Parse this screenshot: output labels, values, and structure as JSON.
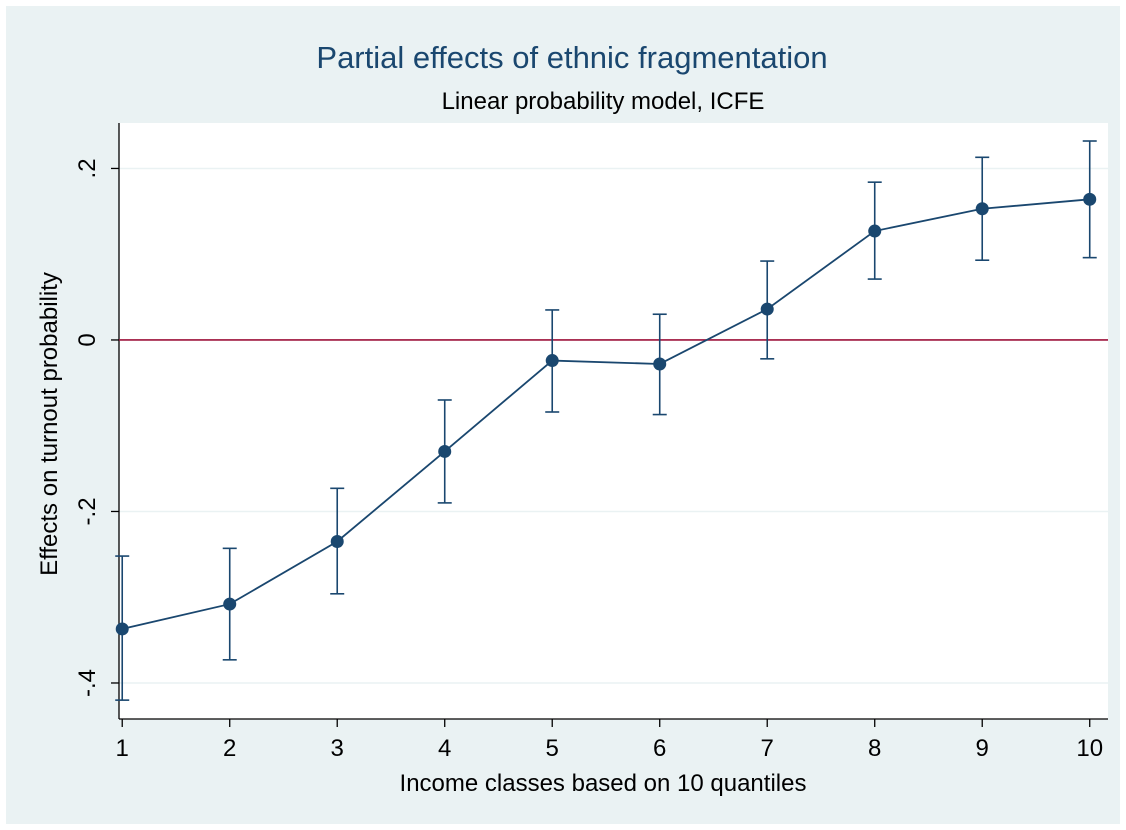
{
  "chart_data": {
    "type": "line",
    "title": "Partial effects of ethnic fragmentation",
    "subtitle": "Linear probability model, ICFE",
    "xlabel": "Income classes based on 10 quantiles",
    "ylabel": "Effects on turnout probability",
    "x": [
      1,
      2,
      3,
      4,
      5,
      6,
      7,
      8,
      9,
      10
    ],
    "x_ticks": [
      "1",
      "2",
      "3",
      "4",
      "5",
      "6",
      "7",
      "8",
      "9",
      "10"
    ],
    "y_ticks": [
      {
        "value": -0.4,
        "label": "-.4"
      },
      {
        "value": -0.2,
        "label": "-.2"
      },
      {
        "value": 0,
        "label": "0"
      },
      {
        "value": 0.2,
        "label": ".2"
      }
    ],
    "xlim": [
      0.97,
      10.17
    ],
    "ylim": [
      -0.442,
      0.253
    ],
    "grid": true,
    "reference_line": {
      "y": 0,
      "color": "#a0143c"
    },
    "series": [
      {
        "values": [
          -0.337,
          -0.308,
          -0.235,
          -0.13,
          -0.024,
          -0.028,
          0.036,
          0.127,
          0.153,
          0.164
        ],
        "ci_low": [
          -0.42,
          -0.373,
          -0.296,
          -0.19,
          -0.084,
          -0.087,
          -0.022,
          0.071,
          0.093,
          0.096
        ],
        "ci_high": [
          -0.252,
          -0.243,
          -0.173,
          -0.07,
          0.035,
          0.03,
          0.092,
          0.184,
          0.213,
          0.232
        ],
        "color": "#1a476f"
      }
    ],
    "colors": {
      "background": "#eaf2f3",
      "plot_bg": "#ffffff",
      "grid": "#eaf2f3",
      "title": "#1a476f"
    }
  }
}
